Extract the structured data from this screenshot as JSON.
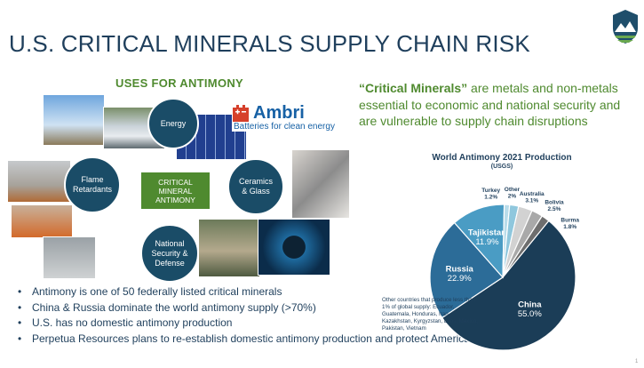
{
  "slide": {
    "title": "U.S. CRITICAL MINERALS SUPPLY CHAIN RISK",
    "logo_icon": "mountain-shield-icon"
  },
  "uses": {
    "heading": "USES FOR ANTIMONY",
    "center_label": "CRITICAL MINERAL ANTIMONY",
    "nodes": {
      "energy": "Energy",
      "flame": "Flame Retardants",
      "ceramics": "Ceramics & Glass",
      "security": "National Security & Defense"
    },
    "ambri_name": "Ambri",
    "ambri_tagline": "Batteries for clean energy"
  },
  "bullets": [
    "Antimony is one of 50 federally listed critical minerals",
    "China & Russia dominate the world antimony supply (>70%)",
    "U.S. has no domestic antimony production",
    "Perpetua Resources plans to re-establish domestic antimony production and protect America’s future"
  ],
  "quote": {
    "bold": "“Critical Minerals”",
    "rest": " are metals and non-metals essential to economic and national security and are vulnerable to supply chain disruptions"
  },
  "chart_data": {
    "type": "pie",
    "title": "World Antimony 2021 Production",
    "subtitle": "(USGS)",
    "slices": [
      {
        "name": "China",
        "label": "55.0%",
        "value": 55.0,
        "color": "#1b3d57"
      },
      {
        "name": "Russia",
        "label": "22.9%",
        "value": 22.9,
        "color": "#2c6c98"
      },
      {
        "name": "Tajikistan",
        "label": "11.9%",
        "value": 11.9,
        "color": "#4a9cc4"
      },
      {
        "name": "Turkey",
        "label": "1.2%",
        "value": 1.2,
        "color": "#b9dcea"
      },
      {
        "name": "Other",
        "label": "2%",
        "value": 2.0,
        "color": "#8fc7dd"
      },
      {
        "name": "Australia",
        "label": "3.1%",
        "value": 3.1,
        "color": "#d2d2d2"
      },
      {
        "name": "Bolivia",
        "label": "2.5%",
        "value": 2.5,
        "color": "#a9a9a9"
      },
      {
        "name": "Burma",
        "label": "1.8%",
        "value": 1.8,
        "color": "#6e6e6e"
      }
    ],
    "footnote": "Other countries that produce less than 1% of global supply: Ecuador, Guatemala, Honduras, Iran, Kazakhstan, Kyrgyzstan, Laos, Mexico, Pakistan, Vietnam"
  },
  "page_number": "1"
}
